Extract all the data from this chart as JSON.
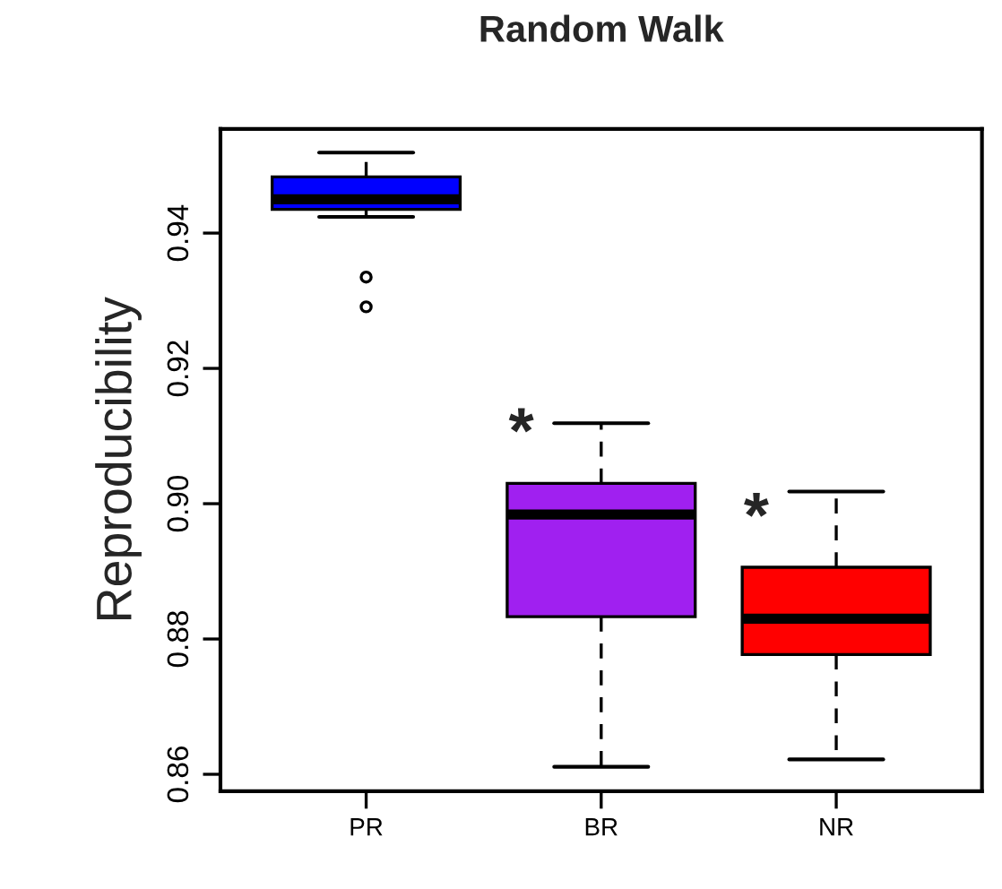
{
  "chart_data": {
    "type": "box",
    "title": "Random Walk",
    "ylabel": "Reproducibility",
    "categories": [
      "PR",
      "BR",
      "NR"
    ],
    "colors": [
      "#0000ff",
      "#a020f0",
      "#ff0000"
    ],
    "boxes": [
      {
        "low": 0.9424,
        "q1": 0.9435,
        "median": 0.945,
        "q3": 0.9483,
        "high": 0.9519,
        "outliers": [
          0.9335,
          0.9291
        ]
      },
      {
        "low": 0.8611,
        "q1": 0.8833,
        "median": 0.8984,
        "q3": 0.903,
        "high": 0.9119
      },
      {
        "low": 0.8622,
        "q1": 0.8777,
        "median": 0.883,
        "q3": 0.8906,
        "high": 0.9018
      }
    ],
    "ylim": [
      0.8575,
      0.9554
    ],
    "yticks": [
      0.86,
      0.88,
      {
        "value": 0.9,
        "label": "0.90"
      },
      0.92,
      0.94
    ],
    "grid": false,
    "annotations": [
      {
        "text": "*",
        "x": "BR",
        "y": 0.91
      },
      {
        "text": "*",
        "x": "NR",
        "y": 0.8975
      }
    ]
  }
}
